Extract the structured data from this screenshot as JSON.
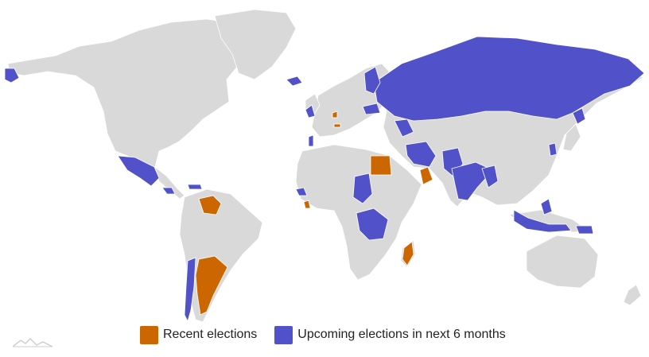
{
  "legend": {
    "items": [
      {
        "label": "Recent elections",
        "color": "#cc6600"
      },
      {
        "label": "Upcoming elections in next 6 months",
        "color": "#5151c9"
      }
    ]
  },
  "colors": {
    "land": "#d9d9d9",
    "border": "#ffffff"
  },
  "logo_icon": "amcharts-logo-icon"
}
